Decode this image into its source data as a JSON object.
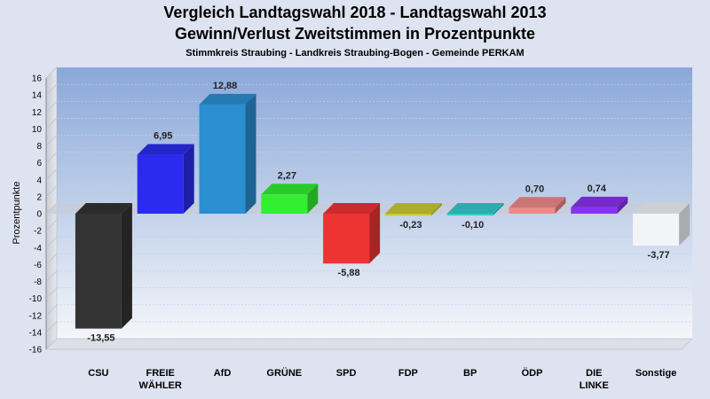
{
  "chart_data": {
    "type": "bar",
    "title": "Vergleich Landtagswahl 2018 - Landtagswahl 2013",
    "subtitle": "Gewinn/Verlust Zweitstimmen in Prozentpunkte",
    "subtitle2": "Stimmkreis Straubing - Landkreis Straubing-Bogen - Gemeinde PERKAM",
    "xlabel": "",
    "ylabel": "Prozentpunkte",
    "ylim": [
      -16,
      16
    ],
    "yticks": [
      16,
      14,
      12,
      10,
      8,
      6,
      4,
      2,
      0,
      -2,
      -4,
      -6,
      -8,
      -10,
      -12,
      -14,
      -16
    ],
    "grid": true,
    "categories": [
      "CSU",
      "FREIE WÄHLER",
      "AfD",
      "GRÜNE",
      "SPD",
      "FDP",
      "BP",
      "ÖDP",
      "DIE LINKE",
      "Sonstige"
    ],
    "category_lines": [
      [
        "CSU"
      ],
      [
        "FREIE",
        "WÄHLER"
      ],
      [
        "AfD"
      ],
      [
        "GRÜNE"
      ],
      [
        "SPD"
      ],
      [
        "FDP"
      ],
      [
        "BP"
      ],
      [
        "ÖDP"
      ],
      [
        "DIE",
        "LINKE"
      ],
      [
        "Sonstige"
      ]
    ],
    "values": [
      -13.55,
      6.95,
      12.88,
      2.27,
      -5.88,
      -0.23,
      -0.1,
      0.7,
      0.74,
      -3.77
    ],
    "value_labels": [
      "-13,55",
      "6,95",
      "12,88",
      "2,27",
      "-5,88",
      "-0,23",
      "-0,10",
      "0,70",
      "0,74",
      "-3,77"
    ],
    "colors": [
      "#333333",
      "#2b2bf0",
      "#2a8fd0",
      "#33ee33",
      "#ee3333",
      "#cccc33",
      "#33cccc",
      "#ee8888",
      "#8833ee",
      "#f2f4f8"
    ]
  }
}
